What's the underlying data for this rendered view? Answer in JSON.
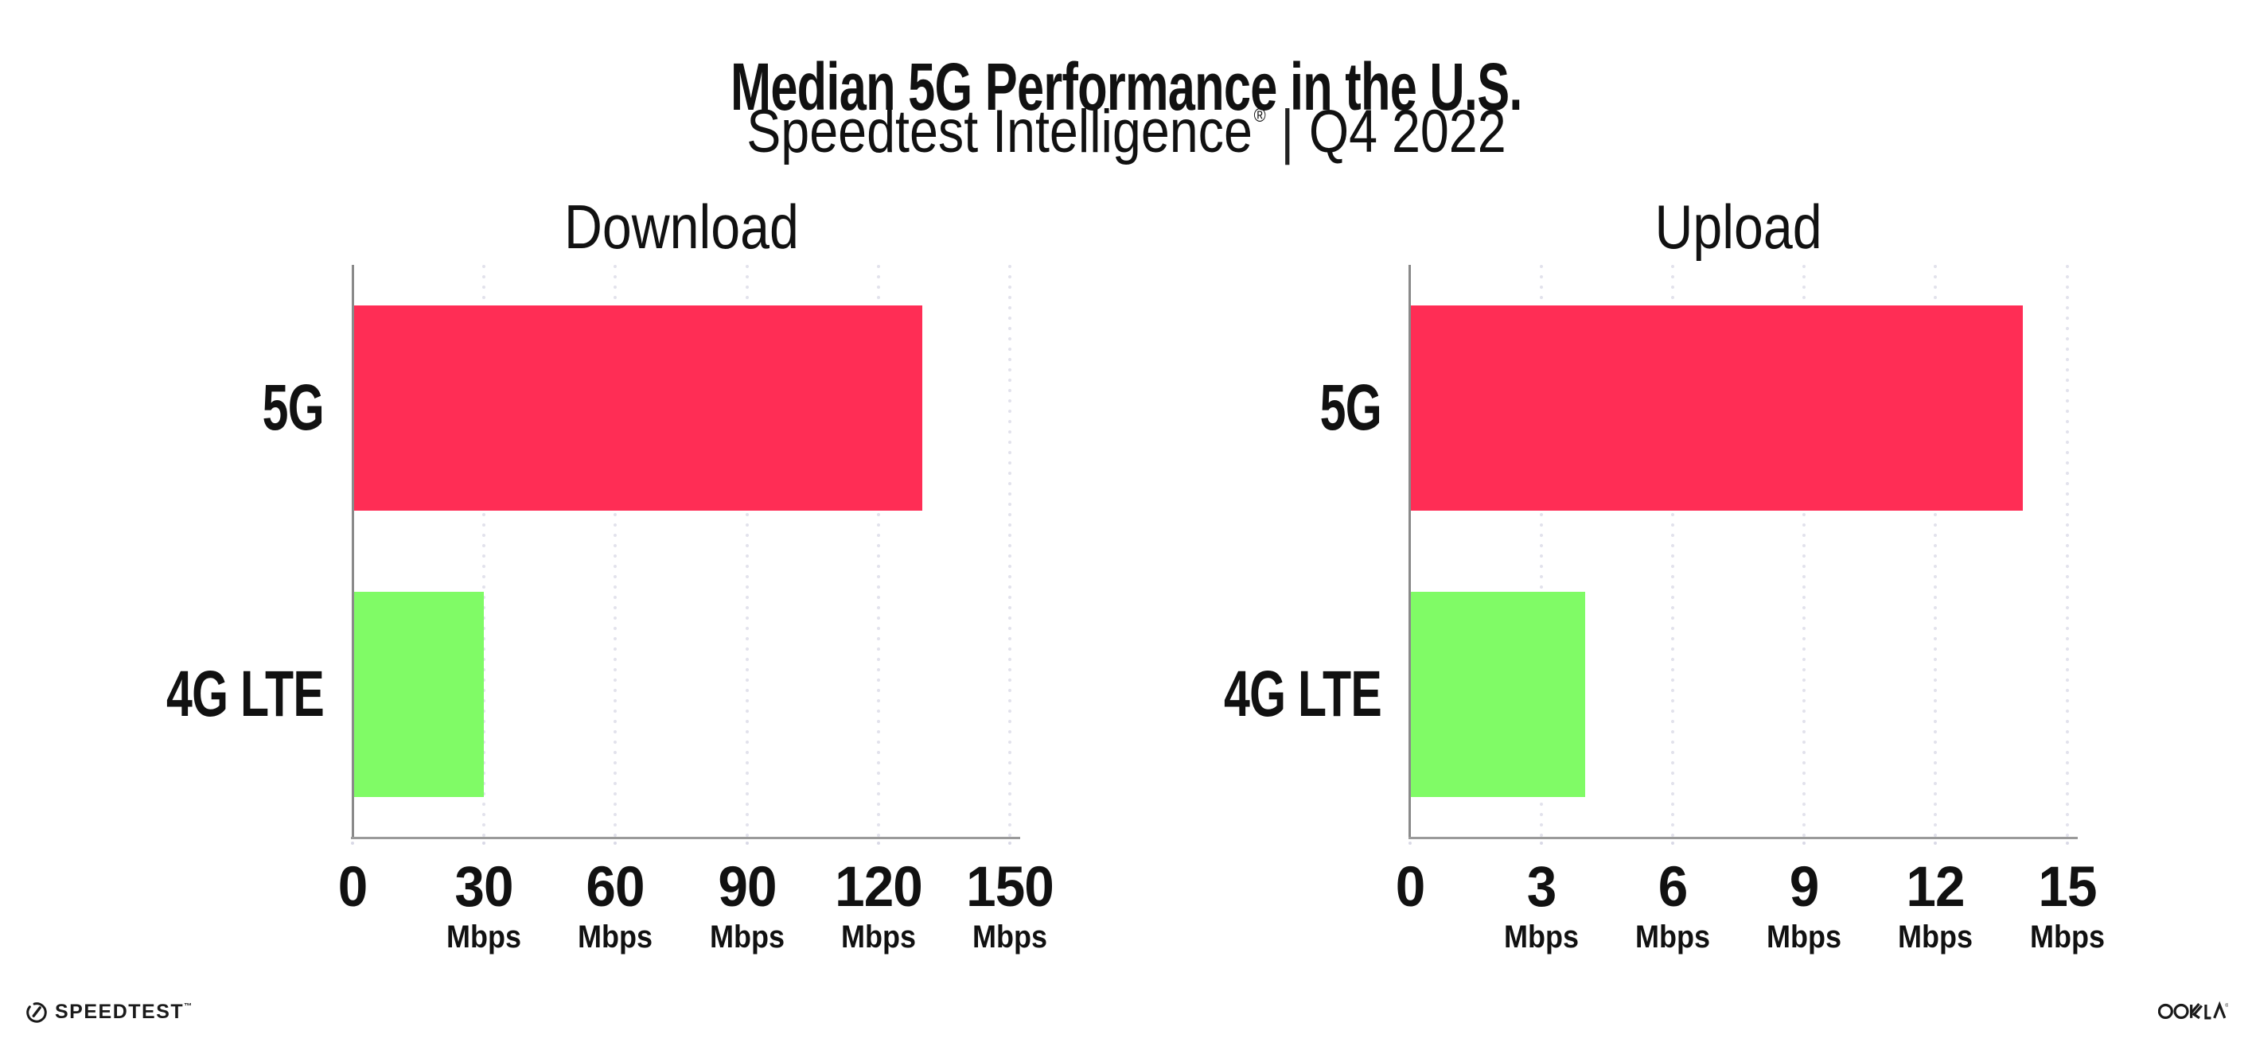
{
  "header": {
    "title": "Median 5G Performance in the U.S.",
    "subtitle_brand": "Speedtest Intelligence",
    "subtitle_reg": "®",
    "subtitle_separator": "|",
    "subtitle_period": "Q4 2022"
  },
  "footer": {
    "speedtest_wordmark": "SPEEDTEST",
    "speedtest_tm": "™",
    "ookla_wordmark": "OOKLA",
    "ookla_reg": "®"
  },
  "colors": {
    "bar_5g": "#FF2D55",
    "bar_4g_lte": "#80FB66",
    "axis": "#9A9A9A",
    "gridline": "#E2E2EC",
    "text": "#111111"
  },
  "chart_data": [
    {
      "type": "bar",
      "orientation": "horizontal",
      "title": "Download",
      "categories": [
        "5G",
        "4G LTE"
      ],
      "values": [
        130,
        30
      ],
      "unit": "Mbps",
      "xlim": [
        0,
        150
      ],
      "xticks": [
        0,
        30,
        60,
        90,
        120,
        150
      ],
      "xtick_unit_labels": [
        "",
        "Mbps",
        "Mbps",
        "Mbps",
        "Mbps",
        "Mbps"
      ],
      "bar_colors": [
        "#FF2D55",
        "#80FB66"
      ],
      "grid": "dotted-vertical-gridlines",
      "legend": "none"
    },
    {
      "type": "bar",
      "orientation": "horizontal",
      "title": "Upload",
      "categories": [
        "5G",
        "4G LTE"
      ],
      "values": [
        14,
        4
      ],
      "unit": "Mbps",
      "xlim": [
        0,
        15
      ],
      "xticks": [
        0,
        3,
        6,
        9,
        12,
        15
      ],
      "xtick_unit_labels": [
        "",
        "Mbps",
        "Mbps",
        "Mbps",
        "Mbps",
        "Mbps"
      ],
      "bar_colors": [
        "#FF2D55",
        "#80FB66"
      ],
      "grid": "dotted-vertical-gridlines",
      "legend": "none"
    }
  ]
}
